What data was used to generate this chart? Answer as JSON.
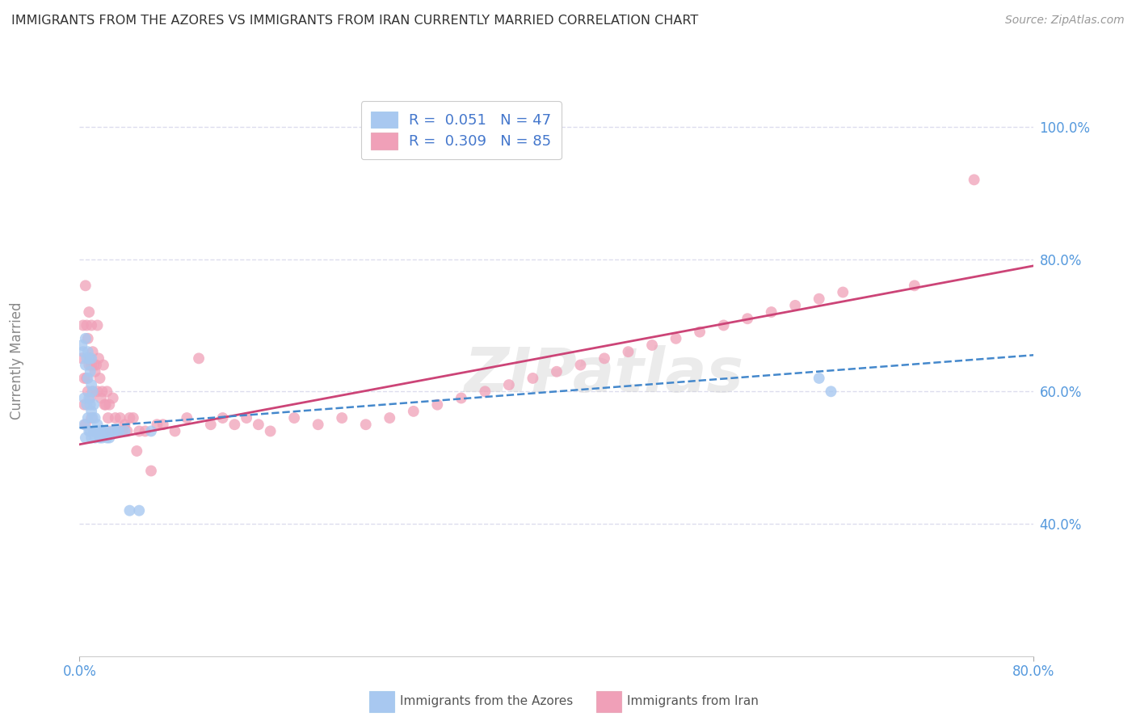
{
  "title": "IMMIGRANTS FROM THE AZORES VS IMMIGRANTS FROM IRAN CURRENTLY MARRIED CORRELATION CHART",
  "source": "Source: ZipAtlas.com",
  "ylabel": "Currently Married",
  "xlim": [
    0.0,
    0.8
  ],
  "ylim": [
    0.2,
    1.05
  ],
  "azores_R": 0.051,
  "azores_N": 47,
  "iran_R": 0.309,
  "iran_N": 85,
  "azores_color": "#A8C8F0",
  "iran_color": "#F0A0B8",
  "azores_line_color": "#4488CC",
  "iran_line_color": "#CC4477",
  "background_color": "#FFFFFF",
  "grid_color": "#DDDDEE",
  "watermark": "ZIPatlas",
  "azores_label": "Immigrants from the Azores",
  "iran_label": "Immigrants from Iran",
  "azores_points_x": [
    0.002,
    0.003,
    0.004,
    0.004,
    0.005,
    0.005,
    0.005,
    0.006,
    0.006,
    0.007,
    0.007,
    0.007,
    0.008,
    0.008,
    0.008,
    0.009,
    0.009,
    0.009,
    0.01,
    0.01,
    0.01,
    0.01,
    0.011,
    0.011,
    0.012,
    0.012,
    0.013,
    0.013,
    0.014,
    0.015,
    0.016,
    0.017,
    0.018,
    0.019,
    0.02,
    0.022,
    0.023,
    0.025,
    0.028,
    0.03,
    0.033,
    0.038,
    0.042,
    0.05,
    0.06,
    0.62,
    0.63
  ],
  "azores_points_y": [
    0.67,
    0.66,
    0.59,
    0.55,
    0.68,
    0.64,
    0.53,
    0.65,
    0.58,
    0.66,
    0.62,
    0.56,
    0.65,
    0.59,
    0.54,
    0.63,
    0.58,
    0.54,
    0.65,
    0.61,
    0.57,
    0.53,
    0.6,
    0.56,
    0.58,
    0.54,
    0.56,
    0.53,
    0.54,
    0.55,
    0.54,
    0.53,
    0.54,
    0.53,
    0.54,
    0.54,
    0.53,
    0.53,
    0.54,
    0.54,
    0.54,
    0.54,
    0.42,
    0.42,
    0.54,
    0.62,
    0.6
  ],
  "iran_points_x": [
    0.002,
    0.003,
    0.004,
    0.004,
    0.005,
    0.005,
    0.006,
    0.006,
    0.007,
    0.007,
    0.008,
    0.008,
    0.009,
    0.009,
    0.01,
    0.01,
    0.01,
    0.011,
    0.011,
    0.012,
    0.013,
    0.014,
    0.015,
    0.015,
    0.016,
    0.017,
    0.018,
    0.019,
    0.02,
    0.021,
    0.022,
    0.023,
    0.024,
    0.025,
    0.026,
    0.028,
    0.03,
    0.032,
    0.034,
    0.036,
    0.038,
    0.04,
    0.042,
    0.045,
    0.048,
    0.05,
    0.055,
    0.06,
    0.065,
    0.07,
    0.08,
    0.09,
    0.1,
    0.11,
    0.12,
    0.13,
    0.14,
    0.15,
    0.16,
    0.18,
    0.2,
    0.22,
    0.24,
    0.26,
    0.28,
    0.3,
    0.32,
    0.34,
    0.36,
    0.38,
    0.4,
    0.42,
    0.44,
    0.46,
    0.48,
    0.5,
    0.52,
    0.54,
    0.56,
    0.58,
    0.6,
    0.62,
    0.64,
    0.7,
    0.75
  ],
  "iran_points_y": [
    0.65,
    0.7,
    0.58,
    0.62,
    0.76,
    0.55,
    0.7,
    0.62,
    0.68,
    0.6,
    0.72,
    0.64,
    0.65,
    0.59,
    0.7,
    0.64,
    0.56,
    0.66,
    0.6,
    0.64,
    0.63,
    0.64,
    0.7,
    0.6,
    0.65,
    0.62,
    0.59,
    0.6,
    0.64,
    0.58,
    0.58,
    0.6,
    0.56,
    0.58,
    0.54,
    0.59,
    0.56,
    0.54,
    0.56,
    0.54,
    0.55,
    0.54,
    0.56,
    0.56,
    0.51,
    0.54,
    0.54,
    0.48,
    0.55,
    0.55,
    0.54,
    0.56,
    0.65,
    0.55,
    0.56,
    0.55,
    0.56,
    0.55,
    0.54,
    0.56,
    0.55,
    0.56,
    0.55,
    0.56,
    0.57,
    0.58,
    0.59,
    0.6,
    0.61,
    0.62,
    0.63,
    0.64,
    0.65,
    0.66,
    0.67,
    0.68,
    0.69,
    0.7,
    0.71,
    0.72,
    0.73,
    0.74,
    0.75,
    0.76,
    0.92
  ]
}
